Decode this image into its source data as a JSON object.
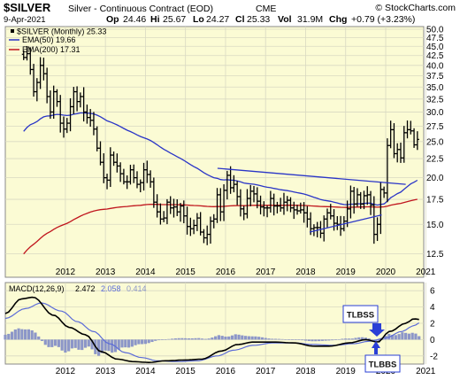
{
  "header": {
    "symbol": "$SILVER",
    "name": "Silver - Continuous Contract (EOD)",
    "exchange": "CME",
    "watermark": "© StockCharts.com",
    "date": "9-Apr-2021",
    "op_label": "Op",
    "op": "24.46",
    "hi_label": "Hi",
    "hi": "25.67",
    "lo_label": "Lo",
    "lo": "24.27",
    "cl_label": "Cl",
    "cl": "25.33",
    "vol_label": "Vol",
    "vol": "31.9M",
    "chg_label": "Chg",
    "chg": "+0.79 (+3.23%)"
  },
  "legend": {
    "price": "$SILVER (Monthly) 25.33",
    "ema50": "EMA(50) 19.66",
    "ema200": "EMA(200) 17.31"
  },
  "macd_legend": {
    "label": "MACD(12,26,9)",
    "macd": "2.472",
    "signal": "2.058",
    "hist": "0.414"
  },
  "annotations": {
    "tlbss": "TLBSS",
    "tlbbs": "TLBBS"
  },
  "colors": {
    "panel_bg": "#fbfbd4",
    "grid": "#d9d9c2",
    "price": "#000000",
    "ema50": "#2a35c7",
    "ema200": "#c0151d",
    "trendline": "#2a35c7",
    "macd": "#000000",
    "signal": "#5b6bd8",
    "hist": "#8c96c8",
    "callout": "#2a3fd6"
  },
  "chart_data": [
    {
      "type": "ohlc",
      "title": "$SILVER Silver - Continuous Contract (EOD) CME",
      "x_ticks": [
        "2012",
        "2013",
        "2014",
        "2015",
        "2016",
        "2017",
        "2018",
        "2019",
        "2020",
        "2021"
      ],
      "y_ticks": [
        "12.5",
        "15.0",
        "17.5",
        "20.0",
        "22.5",
        "25.0",
        "27.5",
        "30.0",
        "32.5",
        "35.0",
        "37.5",
        "40.0",
        "42.5",
        "45.0",
        "47.5",
        "50.0"
      ],
      "y_scale": "log",
      "ylim": [
        11,
        50
      ],
      "close_by_year": {
        "2011": [
          42,
          43,
          39,
          34,
          36,
          40,
          38
        ],
        "2012": [
          33,
          30,
          34,
          32,
          28,
          27,
          28,
          31,
          34,
          32,
          33,
          30
        ],
        "2013": [
          29,
          28.5,
          27,
          24,
          22,
          20,
          19.7,
          23,
          22,
          21.5,
          20.5,
          19.5
        ],
        "2014": [
          19.5,
          21,
          20,
          19.2,
          19.4,
          21,
          20.4,
          19.5,
          17.2,
          16.2,
          15.5,
          15.6
        ],
        "2015": [
          17.2,
          16.6,
          16.7,
          16.2,
          16.8,
          15.8,
          14.8,
          14.6,
          14.9,
          15.6,
          14.3,
          13.8
        ],
        "2016": [
          14.1,
          15.3,
          15.5,
          18,
          16.2,
          18.5,
          20.3,
          18.8,
          19.2,
          17.8,
          16.5,
          16
        ],
        "2017": [
          17.6,
          18.4,
          18.1,
          17.3,
          16.7,
          16.6,
          16.6,
          17.6,
          16.8,
          16.8,
          16.6,
          17.2
        ],
        "2018": [
          17.4,
          16.6,
          16.4,
          16.3,
          16.4,
          16.1,
          15.5,
          14.6,
          14.7,
          14.7,
          14.2,
          15.5
        ],
        "2019": [
          16.1,
          15.8,
          15.1,
          15,
          14.6,
          15.3,
          16.5,
          18.4,
          17,
          18,
          17,
          17.9
        ],
        "2020": [
          18,
          16.9,
          14.1,
          15,
          18.6,
          18.2,
          24.4,
          26.9,
          23.2,
          23.8,
          22.6,
          26.4
        ],
        "2021": [
          26.9,
          26.7,
          24.5,
          25.33
        ]
      },
      "series": [
        {
          "name": "$SILVER (Monthly)",
          "last": 25.33
        },
        {
          "name": "EMA(50)",
          "last": 19.66
        },
        {
          "name": "EMA(200)",
          "last": 17.31
        }
      ],
      "trendlines": [
        {
          "from": [
            2016.3,
            21.2
          ],
          "to": [
            2021.0,
            19.2
          ]
        },
        {
          "from": [
            2018.6,
            14.3
          ],
          "to": [
            2020.4,
            15.9
          ]
        }
      ]
    },
    {
      "type": "line",
      "title": "MACD(12,26,9)",
      "x_ticks": [
        "2012",
        "2013",
        "2014",
        "2015",
        "2016",
        "2017",
        "2018",
        "2019",
        "2020",
        "2021"
      ],
      "y_ticks": [
        "-2",
        "0",
        "2",
        "4",
        "6"
      ],
      "ylim": [
        -3,
        7
      ],
      "macd_knots": [
        [
          2011.0,
          3.2
        ],
        [
          2011.4,
          5.0
        ],
        [
          2011.7,
          5.2
        ],
        [
          2012.2,
          3.0
        ],
        [
          2012.6,
          1.5
        ],
        [
          2013.0,
          0.6
        ],
        [
          2013.4,
          -1.5
        ],
        [
          2013.8,
          -2.4
        ],
        [
          2014.2,
          -2.7
        ],
        [
          2014.6,
          -2.8
        ],
        [
          2015.0,
          -2.6
        ],
        [
          2015.5,
          -2.5
        ],
        [
          2015.9,
          -2.4
        ],
        [
          2016.4,
          -1.4
        ],
        [
          2016.8,
          -0.6
        ],
        [
          2017.2,
          -0.3
        ],
        [
          2017.7,
          -0.3
        ],
        [
          2018.2,
          -0.4
        ],
        [
          2018.7,
          -0.8
        ],
        [
          2019.1,
          -0.8
        ],
        [
          2019.6,
          -0.4
        ],
        [
          2020.0,
          0.0
        ],
        [
          2020.3,
          -0.3
        ],
        [
          2020.6,
          1.0
        ],
        [
          2021.0,
          2.0
        ],
        [
          2021.2,
          2.55
        ],
        [
          2021.35,
          2.47
        ]
      ],
      "signal_knots": [
        [
          2011.0,
          2.6
        ],
        [
          2011.5,
          3.8
        ],
        [
          2011.9,
          4.5
        ],
        [
          2012.4,
          3.5
        ],
        [
          2012.8,
          2.2
        ],
        [
          2013.2,
          1.0
        ],
        [
          2013.6,
          -0.5
        ],
        [
          2014.0,
          -1.6
        ],
        [
          2014.4,
          -2.2
        ],
        [
          2014.8,
          -2.6
        ],
        [
          2015.3,
          -2.7
        ],
        [
          2015.8,
          -2.6
        ],
        [
          2016.3,
          -2.0
        ],
        [
          2016.7,
          -1.3
        ],
        [
          2017.2,
          -0.7
        ],
        [
          2017.7,
          -0.4
        ],
        [
          2018.2,
          -0.4
        ],
        [
          2018.7,
          -0.6
        ],
        [
          2019.2,
          -0.7
        ],
        [
          2019.7,
          -0.5
        ],
        [
          2020.1,
          -0.2
        ],
        [
          2020.5,
          0.2
        ],
        [
          2020.9,
          1.0
        ],
        [
          2021.2,
          1.7
        ],
        [
          2021.35,
          2.06
        ]
      ]
    }
  ]
}
